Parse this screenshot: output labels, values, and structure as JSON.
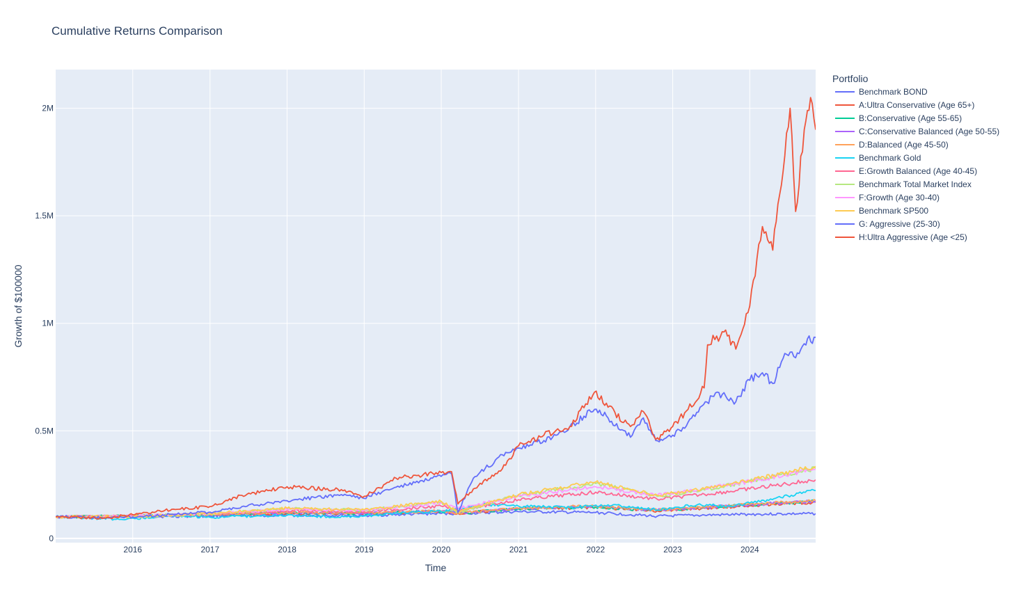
{
  "chart_data": {
    "type": "line",
    "title": "Cumulative Returns Comparison",
    "xlabel": "Time",
    "ylabel": "Growth of $100000",
    "legend_title": "Portfolio",
    "legend_position": "right",
    "grid": true,
    "xlim": [
      "2015-01-01",
      "2024-11-08"
    ],
    "ylim": [
      -20000,
      2180000
    ],
    "x_ticks": [
      {
        "date": "2016-01-01",
        "label": "2016"
      },
      {
        "date": "2017-01-01",
        "label": "2017"
      },
      {
        "date": "2018-01-01",
        "label": "2018"
      },
      {
        "date": "2019-01-01",
        "label": "2019"
      },
      {
        "date": "2020-01-01",
        "label": "2020"
      },
      {
        "date": "2021-01-01",
        "label": "2021"
      },
      {
        "date": "2022-01-01",
        "label": "2022"
      },
      {
        "date": "2023-01-01",
        "label": "2023"
      },
      {
        "date": "2024-01-01",
        "label": "2024"
      }
    ],
    "y_ticks": [
      {
        "value": 0,
        "label": "0"
      },
      {
        "value": 500000,
        "label": "0.5M"
      },
      {
        "value": 1000000,
        "label": "1M"
      },
      {
        "value": 1500000,
        "label": "1.5M"
      },
      {
        "value": 2000000,
        "label": "2M"
      }
    ],
    "series": [
      {
        "name": "Benchmark BOND",
        "color": "#636efa",
        "points": [
          [
            "2015-01-01",
            100000
          ],
          [
            "2016-01-01",
            100000
          ],
          [
            "2017-01-01",
            104000
          ],
          [
            "2018-01-01",
            107000
          ],
          [
            "2019-01-01",
            106000
          ],
          [
            "2020-01-01",
            116000
          ],
          [
            "2020-03-20",
            115000
          ],
          [
            "2021-01-01",
            124000
          ],
          [
            "2022-01-01",
            120000
          ],
          [
            "2022-10-20",
            103000
          ],
          [
            "2023-06-01",
            108000
          ],
          [
            "2024-01-01",
            112000
          ],
          [
            "2024-11-08",
            115000
          ]
        ]
      },
      {
        "name": "A:Ultra Conservative (Age 65+)",
        "color": "#EF553B",
        "points": [
          [
            "2015-01-01",
            100000
          ],
          [
            "2016-01-01",
            104000
          ],
          [
            "2017-01-01",
            110000
          ],
          [
            "2018-01-01",
            116000
          ],
          [
            "2019-01-01",
            115000
          ],
          [
            "2020-01-01",
            124000
          ],
          [
            "2020-03-20",
            116000
          ],
          [
            "2021-01-01",
            136000
          ],
          [
            "2022-01-01",
            144000
          ],
          [
            "2022-10-20",
            128000
          ],
          [
            "2023-06-01",
            140000
          ],
          [
            "2024-01-01",
            152000
          ],
          [
            "2024-11-08",
            168000
          ]
        ]
      },
      {
        "name": "B:Conservative (Age 55-65)",
        "color": "#00cc96",
        "points": [
          [
            "2015-01-01",
            100000
          ],
          [
            "2016-01-01",
            104000
          ],
          [
            "2017-01-01",
            111000
          ],
          [
            "2018-01-01",
            118000
          ],
          [
            "2019-01-01",
            116000
          ],
          [
            "2020-01-01",
            126000
          ],
          [
            "2020-03-20",
            117000
          ],
          [
            "2021-01-01",
            138000
          ],
          [
            "2022-01-01",
            146000
          ],
          [
            "2022-10-20",
            130000
          ],
          [
            "2023-06-01",
            142000
          ],
          [
            "2024-01-01",
            155000
          ],
          [
            "2024-11-08",
            172000
          ]
        ]
      },
      {
        "name": "C:Conservative Balanced (Age 50-55)",
        "color": "#ab63fa",
        "points": [
          [
            "2015-01-01",
            100000
          ],
          [
            "2016-01-01",
            104000
          ],
          [
            "2017-01-01",
            111000
          ],
          [
            "2018-01-01",
            119000
          ],
          [
            "2019-01-01",
            117000
          ],
          [
            "2020-01-01",
            127000
          ],
          [
            "2020-03-20",
            117000
          ],
          [
            "2021-01-01",
            139000
          ],
          [
            "2022-01-01",
            148000
          ],
          [
            "2022-10-20",
            131000
          ],
          [
            "2023-06-01",
            143000
          ],
          [
            "2024-01-01",
            156000
          ],
          [
            "2024-11-08",
            174000
          ]
        ]
      },
      {
        "name": "D:Balanced (Age 45-50)",
        "color": "#FFA15A",
        "points": [
          [
            "2015-01-01",
            100000
          ],
          [
            "2016-01-01",
            104000
          ],
          [
            "2017-01-01",
            112000
          ],
          [
            "2018-01-01",
            120000
          ],
          [
            "2019-01-01",
            118000
          ],
          [
            "2020-01-01",
            128000
          ],
          [
            "2020-03-20",
            118000
          ],
          [
            "2021-01-01",
            140000
          ],
          [
            "2022-01-01",
            150000
          ],
          [
            "2022-10-20",
            132000
          ],
          [
            "2023-06-01",
            144000
          ],
          [
            "2024-01-01",
            158000
          ],
          [
            "2024-11-08",
            176000
          ]
        ]
      },
      {
        "name": "Benchmark Gold",
        "color": "#19d3f3",
        "points": [
          [
            "2015-01-01",
            100000
          ],
          [
            "2015-12-01",
            88000
          ],
          [
            "2016-07-01",
            108000
          ],
          [
            "2017-01-01",
            98000
          ],
          [
            "2018-01-01",
            108000
          ],
          [
            "2018-09-01",
            98000
          ],
          [
            "2019-01-01",
            104000
          ],
          [
            "2019-09-01",
            122000
          ],
          [
            "2020-01-01",
            124000
          ],
          [
            "2020-08-01",
            158000
          ],
          [
            "2021-01-01",
            150000
          ],
          [
            "2021-09-01",
            142000
          ],
          [
            "2022-03-01",
            156000
          ],
          [
            "2022-10-20",
            132000
          ],
          [
            "2023-05-01",
            158000
          ],
          [
            "2023-10-01",
            148000
          ],
          [
            "2024-01-01",
            164000
          ],
          [
            "2024-11-08",
            222000
          ]
        ]
      },
      {
        "name": "E:Growth Balanced (Age 40-45)",
        "color": "#FF6692",
        "points": [
          [
            "2015-01-01",
            100000
          ],
          [
            "2016-01-01",
            104000
          ],
          [
            "2017-01-01",
            113000
          ],
          [
            "2018-01-01",
            128000
          ],
          [
            "2019-01-01",
            124000
          ],
          [
            "2020-01-01",
            150000
          ],
          [
            "2020-03-20",
            130000
          ],
          [
            "2021-01-01",
            180000
          ],
          [
            "2022-01-01",
            215000
          ],
          [
            "2022-10-20",
            182000
          ],
          [
            "2023-06-01",
            205000
          ],
          [
            "2024-01-01",
            230000
          ],
          [
            "2024-11-08",
            272000
          ]
        ]
      },
      {
        "name": "Benchmark Total Market Index",
        "color": "#B6E880",
        "points": [
          [
            "2015-01-01",
            100000
          ],
          [
            "2016-01-01",
            100000
          ],
          [
            "2017-01-01",
            114000
          ],
          [
            "2018-01-01",
            138000
          ],
          [
            "2019-01-01",
            130000
          ],
          [
            "2020-01-01",
            168000
          ],
          [
            "2020-03-20",
            120000
          ],
          [
            "2021-01-01",
            200000
          ],
          [
            "2022-01-01",
            255000
          ],
          [
            "2022-10-20",
            195000
          ],
          [
            "2023-06-01",
            225000
          ],
          [
            "2024-01-01",
            265000
          ],
          [
            "2024-11-08",
            325000
          ]
        ]
      },
      {
        "name": "F:Growth (Age 30-40)",
        "color": "#FF97FF",
        "points": [
          [
            "2015-01-01",
            100000
          ],
          [
            "2016-01-01",
            103000
          ],
          [
            "2017-01-01",
            115000
          ],
          [
            "2018-01-01",
            135000
          ],
          [
            "2019-01-01",
            130000
          ],
          [
            "2020-01-01",
            165000
          ],
          [
            "2020-03-20",
            140000
          ],
          [
            "2021-01-01",
            195000
          ],
          [
            "2022-01-01",
            240000
          ],
          [
            "2022-10-20",
            200000
          ],
          [
            "2023-06-01",
            230000
          ],
          [
            "2024-01-01",
            265000
          ],
          [
            "2024-11-08",
            320000
          ]
        ]
      },
      {
        "name": "Benchmark SP500",
        "color": "#FECB52",
        "points": [
          [
            "2015-01-01",
            100000
          ],
          [
            "2016-01-01",
            101000
          ],
          [
            "2017-01-01",
            115000
          ],
          [
            "2018-01-01",
            140000
          ],
          [
            "2019-01-01",
            133000
          ],
          [
            "2020-01-01",
            172000
          ],
          [
            "2020-03-20",
            122000
          ],
          [
            "2021-01-01",
            204000
          ],
          [
            "2022-01-01",
            262000
          ],
          [
            "2022-10-20",
            200000
          ],
          [
            "2023-06-01",
            230000
          ],
          [
            "2024-01-01",
            270000
          ],
          [
            "2024-11-08",
            335000
          ]
        ]
      },
      {
        "name": "G: Aggressive (25-30)",
        "color": "#636efa",
        "points": [
          [
            "2015-01-01",
            100000
          ],
          [
            "2015-09-01",
            96000
          ],
          [
            "2016-01-01",
            100000
          ],
          [
            "2017-01-01",
            122000
          ],
          [
            "2017-06-01",
            148000
          ],
          [
            "2018-01-01",
            175000
          ],
          [
            "2018-10-01",
            205000
          ],
          [
            "2018-12-24",
            188000
          ],
          [
            "2019-06-01",
            238000
          ],
          [
            "2020-02-19",
            300000
          ],
          [
            "2020-03-20",
            120000
          ],
          [
            "2020-06-01",
            280000
          ],
          [
            "2020-11-01",
            400000
          ],
          [
            "2021-01-01",
            420000
          ],
          [
            "2021-05-01",
            455000
          ],
          [
            "2021-09-01",
            520000
          ],
          [
            "2021-12-27",
            600000
          ],
          [
            "2022-03-01",
            560000
          ],
          [
            "2022-06-15",
            470000
          ],
          [
            "2022-08-15",
            560000
          ],
          [
            "2022-10-13",
            455000
          ],
          [
            "2023-01-01",
            480000
          ],
          [
            "2023-03-15",
            540000
          ],
          [
            "2023-07-31",
            680000
          ],
          [
            "2023-10-27",
            635000
          ],
          [
            "2024-01-01",
            735000
          ],
          [
            "2024-03-01",
            770000
          ],
          [
            "2024-04-19",
            720000
          ],
          [
            "2024-06-15",
            860000
          ],
          [
            "2024-08-05",
            840000
          ],
          [
            "2024-09-15",
            905000
          ],
          [
            "2024-11-08",
            935000
          ]
        ]
      },
      {
        "name": "H:Ultra Aggressive (Age <25)",
        "color": "#EF553B",
        "points": [
          [
            "2015-01-01",
            100000
          ],
          [
            "2015-08-25",
            94000
          ],
          [
            "2016-01-01",
            110000
          ],
          [
            "2016-06-01",
            130000
          ],
          [
            "2017-01-01",
            148000
          ],
          [
            "2017-06-01",
            200000
          ],
          [
            "2018-01-01",
            240000
          ],
          [
            "2018-10-01",
            225000
          ],
          [
            "2018-12-24",
            190000
          ],
          [
            "2019-06-01",
            280000
          ],
          [
            "2020-02-19",
            310000
          ],
          [
            "2020-03-20",
            160000
          ],
          [
            "2020-06-01",
            230000
          ],
          [
            "2020-11-01",
            340000
          ],
          [
            "2021-01-01",
            430000
          ],
          [
            "2021-05-01",
            480000
          ],
          [
            "2021-09-01",
            520000
          ],
          [
            "2021-12-27",
            680000
          ],
          [
            "2022-03-01",
            610000
          ],
          [
            "2022-06-15",
            520000
          ],
          [
            "2022-08-15",
            590000
          ],
          [
            "2022-10-13",
            460000
          ],
          [
            "2023-01-01",
            520000
          ],
          [
            "2023-03-15",
            600000
          ],
          [
            "2023-05-30",
            700000
          ],
          [
            "2023-06-15",
            900000
          ],
          [
            "2023-09-01",
            960000
          ],
          [
            "2023-10-27",
            880000
          ],
          [
            "2024-01-01",
            1080000
          ],
          [
            "2024-03-01",
            1450000
          ],
          [
            "2024-04-19",
            1340000
          ],
          [
            "2024-06-15",
            1780000
          ],
          [
            "2024-07-10",
            2000000
          ],
          [
            "2024-08-05",
            1520000
          ],
          [
            "2024-09-15",
            1900000
          ],
          [
            "2024-10-15",
            2050000
          ],
          [
            "2024-11-08",
            1900000
          ]
        ]
      }
    ]
  }
}
